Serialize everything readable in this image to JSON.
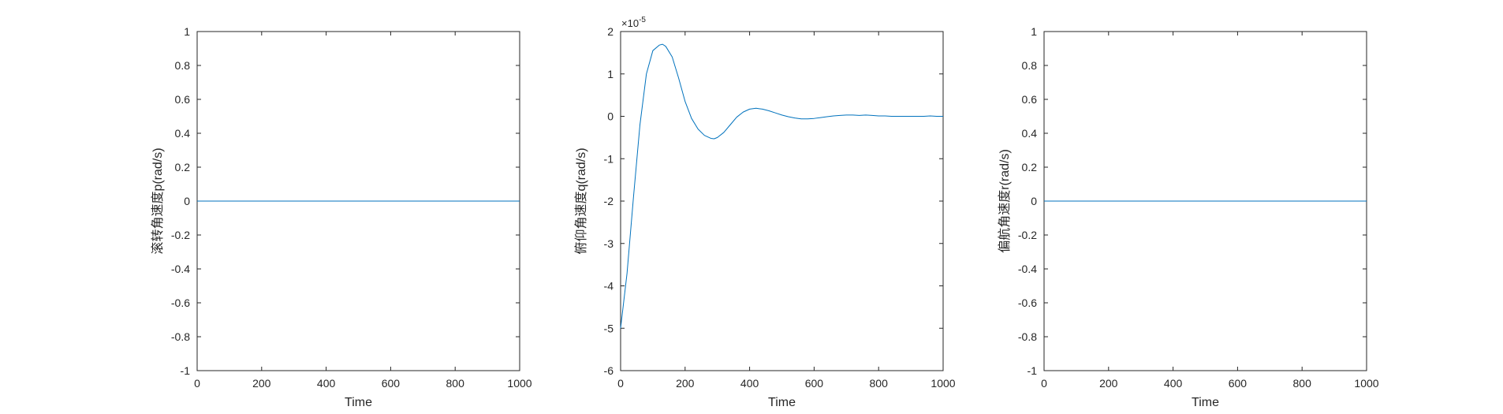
{
  "figure": {
    "background": "#ffffff",
    "line_color": "#0072BD",
    "axis_color": "#262626"
  },
  "chart_data": [
    {
      "type": "line",
      "title": "",
      "xlabel": "Time",
      "ylabel": "滚转角速度p(rad/s)",
      "xlim": [
        0,
        1000
      ],
      "ylim": [
        -1,
        1
      ],
      "xticks": [
        0,
        200,
        400,
        600,
        800,
        1000
      ],
      "xtick_labels": [
        "0",
        "200",
        "400",
        "600",
        "800",
        "1000"
      ],
      "yticks": [
        -1,
        -0.8,
        -0.6,
        -0.4,
        -0.2,
        0,
        0.2,
        0.4,
        0.6,
        0.8,
        1
      ],
      "ytick_labels": [
        "-1",
        "-0.8",
        "-0.6",
        "-0.4",
        "-0.2",
        "0",
        "0.2",
        "0.4",
        "0.6",
        "0.8",
        "1"
      ],
      "exponent_label": "",
      "grid": false,
      "series": [
        {
          "color": "#0072BD",
          "x": [
            0,
            1000
          ],
          "y": [
            0,
            0
          ]
        }
      ]
    },
    {
      "type": "line",
      "title": "",
      "xlabel": "Time",
      "ylabel": "俯仰角速度q(rad/s)",
      "xlim": [
        0,
        1000
      ],
      "ylim": [
        -6,
        2
      ],
      "xticks": [
        0,
        200,
        400,
        600,
        800,
        1000
      ],
      "xtick_labels": [
        "0",
        "200",
        "400",
        "600",
        "800",
        "1000"
      ],
      "yticks": [
        -6,
        -5,
        -4,
        -3,
        -2,
        -1,
        0,
        1,
        2
      ],
      "ytick_labels": [
        "-6",
        "-5",
        "-4",
        "-3",
        "-2",
        "-1",
        "0",
        "1",
        "2"
      ],
      "exponent_label": "×10",
      "exponent_power": "-5",
      "grid": false,
      "series": [
        {
          "color": "#0072BD",
          "x": [
            0,
            20,
            40,
            60,
            80,
            100,
            120,
            130,
            140,
            160,
            180,
            200,
            220,
            240,
            260,
            280,
            290,
            300,
            320,
            340,
            360,
            380,
            400,
            420,
            430,
            440,
            460,
            480,
            500,
            520,
            540,
            560,
            580,
            600,
            620,
            640,
            660,
            680,
            700,
            720,
            740,
            760,
            780,
            800,
            820,
            840,
            860,
            880,
            900,
            920,
            940,
            960,
            980,
            1000
          ],
          "y": [
            -5.0,
            -3.7,
            -1.9,
            -0.2,
            1.0,
            1.55,
            1.68,
            1.7,
            1.65,
            1.4,
            0.9,
            0.35,
            -0.05,
            -0.3,
            -0.45,
            -0.52,
            -0.53,
            -0.5,
            -0.38,
            -0.2,
            -0.02,
            0.1,
            0.17,
            0.19,
            0.18,
            0.17,
            0.13,
            0.08,
            0.03,
            -0.01,
            -0.04,
            -0.06,
            -0.06,
            -0.05,
            -0.03,
            -0.01,
            0.01,
            0.02,
            0.03,
            0.03,
            0.02,
            0.03,
            0.02,
            0.01,
            0.01,
            0.0,
            0.0,
            0.0,
            0.0,
            0.0,
            0.0,
            0.01,
            0.0,
            0.0
          ]
        }
      ]
    },
    {
      "type": "line",
      "title": "",
      "xlabel": "Time",
      "ylabel": "偏航角速度r(rad/s)",
      "xlim": [
        0,
        1000
      ],
      "ylim": [
        -1,
        1
      ],
      "xticks": [
        0,
        200,
        400,
        600,
        800,
        1000
      ],
      "xtick_labels": [
        "0",
        "200",
        "400",
        "600",
        "800",
        "1000"
      ],
      "yticks": [
        -1,
        -0.8,
        -0.6,
        -0.4,
        -0.2,
        0,
        0.2,
        0.4,
        0.6,
        0.8,
        1
      ],
      "ytick_labels": [
        "-1",
        "-0.8",
        "-0.6",
        "-0.4",
        "-0.2",
        "0",
        "0.2",
        "0.4",
        "0.6",
        "0.8",
        "1"
      ],
      "exponent_label": "",
      "grid": false,
      "series": [
        {
          "color": "#0072BD",
          "x": [
            0,
            1000
          ],
          "y": [
            0,
            0
          ]
        }
      ]
    }
  ]
}
